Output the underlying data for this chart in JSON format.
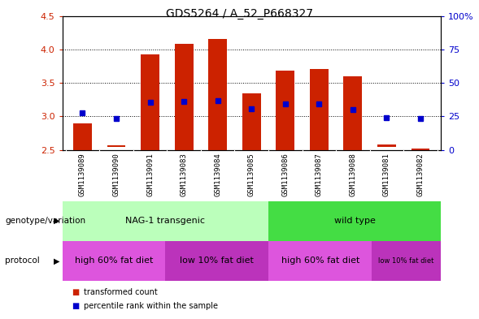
{
  "title": "GDS5264 / A_52_P668327",
  "samples": [
    "GSM1139089",
    "GSM1139090",
    "GSM1139091",
    "GSM1139083",
    "GSM1139084",
    "GSM1139085",
    "GSM1139086",
    "GSM1139087",
    "GSM1139088",
    "GSM1139081",
    "GSM1139082"
  ],
  "red_bars_bottom": [
    2.5,
    2.55,
    2.5,
    2.5,
    2.5,
    2.5,
    2.5,
    2.5,
    2.5,
    2.55,
    2.5
  ],
  "red_bars_top": [
    2.9,
    2.57,
    3.93,
    4.08,
    4.16,
    3.35,
    3.68,
    3.71,
    3.6,
    2.58,
    2.52
  ],
  "blue_dots_y": [
    3.05,
    2.97,
    3.21,
    3.22,
    3.24,
    3.11,
    3.19,
    3.19,
    3.1,
    2.98,
    2.97
  ],
  "ylim_left": [
    2.5,
    4.5
  ],
  "ylim_right": [
    0,
    100
  ],
  "yticks_left": [
    2.5,
    3.0,
    3.5,
    4.0,
    4.5
  ],
  "yticks_right": [
    0,
    25,
    50,
    75,
    100
  ],
  "ytick_labels_right": [
    "0",
    "25",
    "50",
    "75",
    "100%"
  ],
  "bar_color": "#CC2200",
  "dot_color": "#0000CC",
  "genotype_groups": [
    {
      "label": "NAG-1 transgenic",
      "start": 0,
      "end": 5,
      "color": "#BBFFBB"
    },
    {
      "label": "wild type",
      "start": 6,
      "end": 10,
      "color": "#44DD44"
    }
  ],
  "protocol_groups": [
    {
      "label": "high 60% fat diet",
      "start": 0,
      "end": 2,
      "color": "#DD55DD"
    },
    {
      "label": "low 10% fat diet",
      "start": 3,
      "end": 5,
      "color": "#BB33BB"
    },
    {
      "label": "high 60% fat diet",
      "start": 6,
      "end": 8,
      "color": "#DD55DD"
    },
    {
      "label": "low 10% fat diet",
      "start": 9,
      "end": 10,
      "color": "#BB33BB"
    }
  ],
  "legend_items": [
    {
      "label": "transformed count",
      "color": "#CC2200"
    },
    {
      "label": "percentile rank within the sample",
      "color": "#0000CC"
    }
  ],
  "genotype_label": "genotype/variation",
  "protocol_label": "protocol",
  "tick_color_left": "#CC2200",
  "tick_color_right": "#0000CC",
  "xtick_bg_color": "#CCCCCC",
  "plot_bg_color": "#FFFFFF"
}
